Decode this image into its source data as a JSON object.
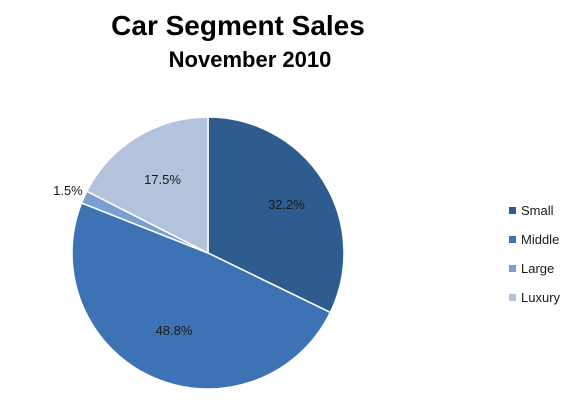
{
  "chart_data": {
    "type": "pie",
    "title": "Car Segment Sales",
    "subtitle": "November 2010",
    "categories": [
      "Small",
      "Middle",
      "Large",
      "Luxury"
    ],
    "values": [
      32.2,
      48.8,
      1.5,
      17.5
    ],
    "value_labels": [
      "32.2%",
      "48.8%",
      "1.5%",
      "17.5%"
    ],
    "colors": [
      "#2e5c8e",
      "#3d72b4",
      "#7c9fd1",
      "#b4c3dc"
    ],
    "legend_position": "right"
  }
}
